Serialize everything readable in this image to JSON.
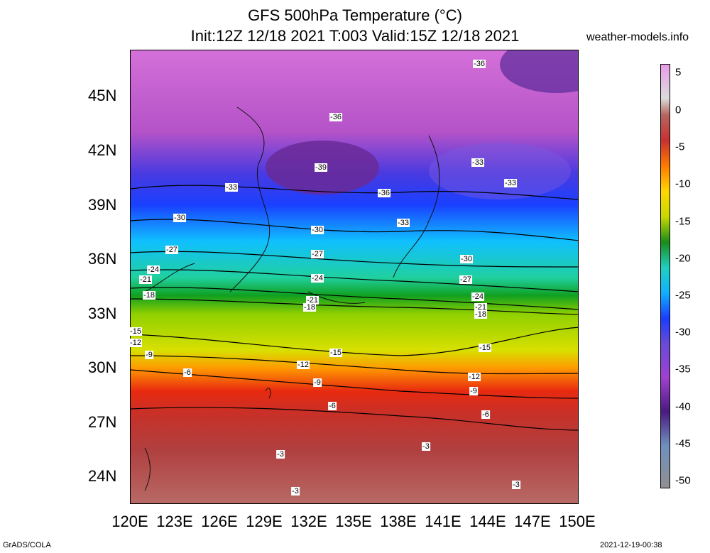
{
  "title": {
    "line1": "GFS 500hPa Temperature (°C)",
    "line2": "Init:12Z 12/18 2021 T:003 Valid:15Z 12/18 2021"
  },
  "site": "weather-models.info",
  "y_axis": [
    "45N",
    "42N",
    "39N",
    "36N",
    "33N",
    "30N",
    "27N",
    "24N"
  ],
  "x_axis": [
    "120E",
    "123E",
    "126E",
    "129E",
    "132E",
    "135E",
    "138E",
    "141E",
    "144E",
    "147E",
    "150E"
  ],
  "colorbar": {
    "labels": [
      "5",
      "0",
      "-5",
      "-10",
      "-15",
      "-20",
      "-25",
      "-30",
      "-35",
      "-40",
      "-45",
      "-50"
    ],
    "colors": [
      "#e79be7",
      "#dcdcdc",
      "#b56560",
      "#c83030",
      "#ff7a00",
      "#ffd700",
      "#c8d800",
      "#1a8c1a",
      "#20d0c0",
      "#10b0ff",
      "#1a3cff",
      "#6a4ad8",
      "#a040d0",
      "#4a1a80",
      "#7090c0",
      "#909090"
    ]
  },
  "contour_labels": [
    "-36",
    "-36",
    "-39",
    "-33",
    "-33",
    "-36",
    "-33",
    "-30",
    "-30",
    "-30",
    "-27",
    "-27",
    "-27",
    "-24",
    "-24",
    "-24",
    "-21",
    "-21",
    "-21",
    "-18",
    "-18",
    "-18",
    "-15",
    "-15",
    "-15",
    "-12",
    "-12",
    "-12",
    "-9",
    "-9",
    "-9",
    "-6",
    "-6",
    "-6",
    "-3",
    "-3",
    "-3",
    "-3",
    "-33"
  ],
  "footer": {
    "left": "GrADS/COLA",
    "right": "2021-12-19-00:38"
  }
}
